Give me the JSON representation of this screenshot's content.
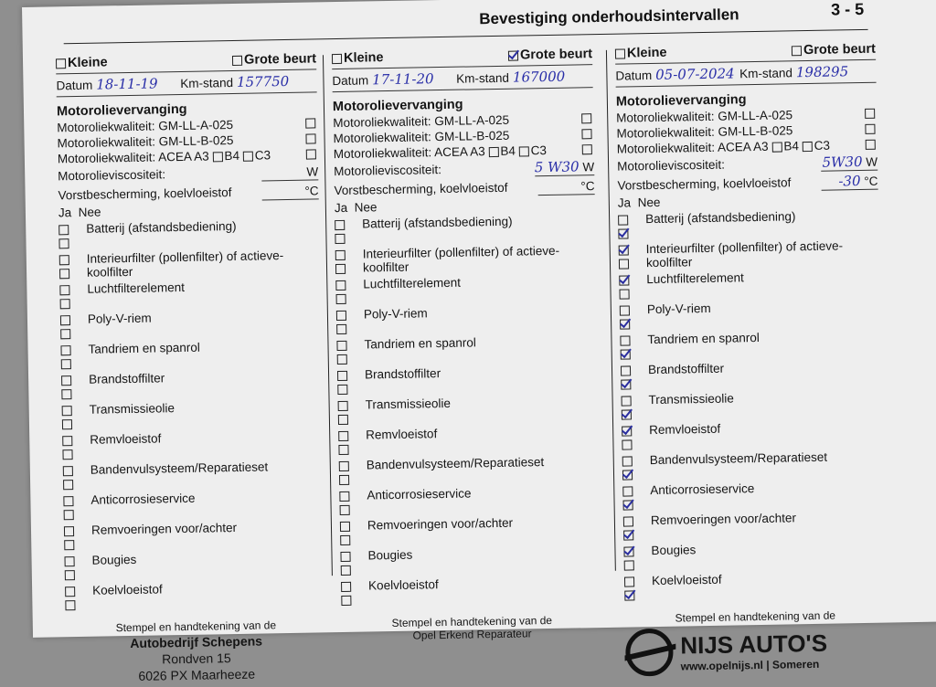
{
  "header": {
    "title": "Bevestiging onderhoudsintervallen",
    "page": "3 - 5"
  },
  "labels": {
    "kleine": "Kleine",
    "grote": "Grote beurt",
    "datum": "Datum",
    "km": "Km-stand",
    "section": "Motorolievervanging",
    "q1": "Motoroliekwaliteit: GM-LL-A-025",
    "q2": "Motoroliekwaliteit: GM-LL-B-025",
    "q3a": "Motoroliekwaliteit: ACEA A3",
    "q3b": "B4",
    "q3c": "C3",
    "visc": "Motorolieviscositeit:",
    "visc_unit": "W",
    "frost": "Vorstbescherming, koelvloeistof",
    "frost_unit": "°C",
    "ja": "Ja",
    "nee": "Nee",
    "stamp": "Stempel en handtekening van de"
  },
  "items": [
    "Batterij (afstandsbediening)",
    "Interieurfilter (pollenfilter) of actieve-koolfilter",
    "Luchtfilterelement",
    "Poly-V-riem",
    "Tandriem en spanrol",
    "Brandstoffilter",
    "Transmissieolie",
    "Remvloeistof",
    "Bandenvulsysteem/Reparatieset",
    "Anticorrosieservice",
    "Remvoeringen voor/achter",
    "Bougies",
    "Koelvloeistof"
  ],
  "columns": [
    {
      "grote": false,
      "datum": "18-11-19",
      "km": "157750",
      "visc": "",
      "frost": "",
      "checks": [],
      "stamp": {
        "name": "Autobedrijf Schepens",
        "line1": "Rondven 15",
        "line2": "6026 PX Maarheeze"
      }
    },
    {
      "grote": true,
      "datum": "17-11-20",
      "km": "167000",
      "visc": "5 W30",
      "frost": "",
      "checks": [],
      "stamp": {
        "line1": "Opel Erkend Reparateur"
      }
    },
    {
      "grote": false,
      "datum": "05-07-2024",
      "km": "198295",
      "visc": "5W30",
      "frost": "-30",
      "checks": [
        "nee",
        "ja",
        "ja",
        "nee",
        "nee",
        "nee",
        "nee",
        "ja",
        "nee",
        "nee",
        "nee",
        "ja",
        "nee"
      ],
      "stamp": {
        "brand": "NIJS AUTO'S",
        "url": "www.opelnijs.nl | Someren"
      }
    }
  ]
}
